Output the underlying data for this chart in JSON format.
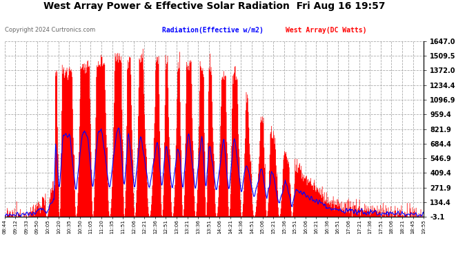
{
  "title": "West Array Power & Effective Solar Radiation  Fri Aug 16 19:57",
  "copyright": "Copyright 2024 Curtronics.com",
  "legend_blue": "Radiation(Effective w/m2)",
  "legend_red": "West Array(DC Watts)",
  "ylabel_right_values": [
    1647.0,
    1509.5,
    1372.0,
    1234.4,
    1096.9,
    959.4,
    821.9,
    684.4,
    546.9,
    409.4,
    271.9,
    134.4,
    -3.1
  ],
  "ymin": -3.1,
  "ymax": 1647.0,
  "bg_color": "#ffffff",
  "plot_bg_color": "#ffffff",
  "grid_color": "#aaaaaa",
  "title_color": "#000000",
  "red_color": "#ff0000",
  "blue_color": "#0000ff",
  "x_tick_labels": [
    "08:44",
    "09:12",
    "09:33",
    "09:50",
    "10:05",
    "10:20",
    "10:35",
    "10:50",
    "11:05",
    "11:20",
    "11:35",
    "11:51",
    "12:06",
    "12:21",
    "12:36",
    "12:51",
    "13:06",
    "13:21",
    "13:36",
    "13:51",
    "14:06",
    "14:21",
    "14:36",
    "14:51",
    "15:06",
    "15:21",
    "15:36",
    "15:51",
    "16:06",
    "16:21",
    "16:36",
    "16:51",
    "17:06",
    "17:21",
    "17:36",
    "17:51",
    "18:06",
    "18:21",
    "18:45",
    "19:55"
  ],
  "n_points": 800
}
